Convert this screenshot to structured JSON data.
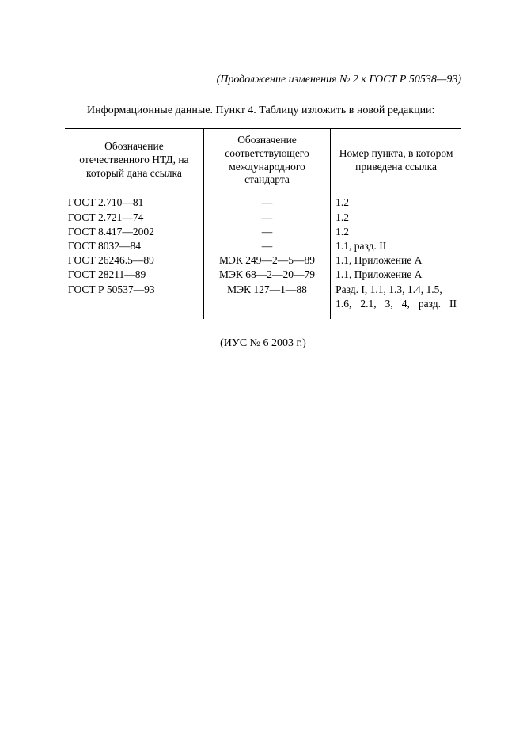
{
  "page": {
    "header_note": "(Продолжение изменения № 2 к ГОСТ Р 50538—93)",
    "intro": "Информационные данные. Пункт 4. Таблицу изложить в новой редакции:",
    "footer": "(ИУС № 6 2003 г.)"
  },
  "table": {
    "columns": [
      "Обозначение отечественного НТД, на который дана ссылка",
      "Обозначение соответствующего международного стандарта",
      "Номер пункта, в котором приведена ссылка"
    ],
    "rows": [
      {
        "ntd": "ГОСТ 2.710—81",
        "intl": "—",
        "ref": "1.2"
      },
      {
        "ntd": "ГОСТ 2.721—74",
        "intl": "—",
        "ref": "1.2"
      },
      {
        "ntd": "ГОСТ 8.417—2002",
        "intl": "—",
        "ref": "1.2"
      },
      {
        "ntd": "ГОСТ 8032—84",
        "intl": "—",
        "ref": "1.1, разд. II"
      },
      {
        "ntd": "ГОСТ 26246.5—89",
        "intl": "МЭК 249—2—5—89",
        "ref": "1.1, Приложение А"
      },
      {
        "ntd": "ГОСТ 28211—89",
        "intl": "МЭК 68—2—20—79",
        "ref": "1.1, Приложение А"
      },
      {
        "ntd": "ГОСТ Р 50537—93",
        "intl": "МЭК 127—1—88",
        "ref": "Разд. I, 1.1, 1.3, 1.4, 1.5, 1.6, 2.1, 3, 4, разд. II"
      }
    ],
    "col_widths_pct": [
      35,
      32,
      33
    ],
    "font_size_pt": 10,
    "border_color": "#000000",
    "background_color": "#ffffff",
    "text_color": "#000000"
  }
}
